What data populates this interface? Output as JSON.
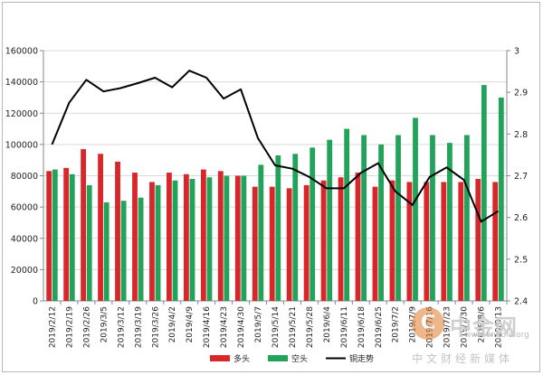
{
  "chart_data": {
    "type": "bar",
    "categories": [
      "2019/2/12",
      "2019/2/19",
      "2019/2/26",
      "2019/3/5",
      "2019/3/12",
      "2019/3/19",
      "2019/3/26",
      "2019/4/2",
      "2019/4/9",
      "2019/4/16",
      "2019/4/23",
      "2019/4/30",
      "2019/5/7",
      "2019/5/14",
      "2019/5/21",
      "2019/5/28",
      "2019/6/4",
      "2019/6/11",
      "2019/6/18",
      "2019/6/25",
      "2019/7/2",
      "2019/7/9",
      "2019/7/16",
      "2019/7/23",
      "2019/7/30",
      "2019/8/6",
      "2019/8/13"
    ],
    "series": [
      {
        "name": "多头",
        "type": "bar",
        "axis": "left",
        "color": "#d9262b",
        "values": [
          83000,
          85000,
          97000,
          94000,
          89000,
          82000,
          76000,
          82000,
          81000,
          84000,
          83000,
          80000,
          73000,
          73000,
          72000,
          74000,
          77000,
          79000,
          82000,
          73000,
          77000,
          76000,
          76000,
          76000,
          76000,
          78000,
          76000
        ]
      },
      {
        "name": "空头",
        "type": "bar",
        "axis": "left",
        "color": "#21a35a",
        "values": [
          84000,
          81000,
          74000,
          63000,
          64000,
          66000,
          74000,
          77000,
          78000,
          79000,
          80000,
          80000,
          87000,
          93000,
          94000,
          98000,
          103000,
          110000,
          106000,
          100000,
          106000,
          117000,
          106000,
          101000,
          106000,
          138000,
          130000
        ]
      },
      {
        "name": "铜走势",
        "type": "line",
        "axis": "right",
        "color": "#000000",
        "values": [
          2.775,
          2.875,
          2.93,
          2.902,
          2.91,
          2.922,
          2.935,
          2.912,
          2.952,
          2.935,
          2.885,
          2.907,
          2.79,
          2.725,
          2.717,
          2.697,
          2.67,
          2.67,
          2.707,
          2.73,
          2.663,
          2.63,
          2.697,
          2.72,
          2.69,
          2.59,
          2.615
        ]
      }
    ],
    "y_left": {
      "min": 0,
      "max": 160000,
      "step": 20000,
      "ticks": [
        "0",
        "20000",
        "40000",
        "60000",
        "80000",
        "100000",
        "120000",
        "140000",
        "160000"
      ]
    },
    "y_right": {
      "min": 2.4,
      "max": 3.0,
      "step": 0.1,
      "ticks": [
        "2.4",
        "2.5",
        "2.6",
        "2.7",
        "2.8",
        "2.9",
        "3"
      ]
    },
    "grid": true,
    "legend_position": "bottom-center"
  },
  "watermark": {
    "logo": "C",
    "name": "中金网",
    "url": "www.cngold.org",
    "subtitle": "中文财经新媒体"
  }
}
